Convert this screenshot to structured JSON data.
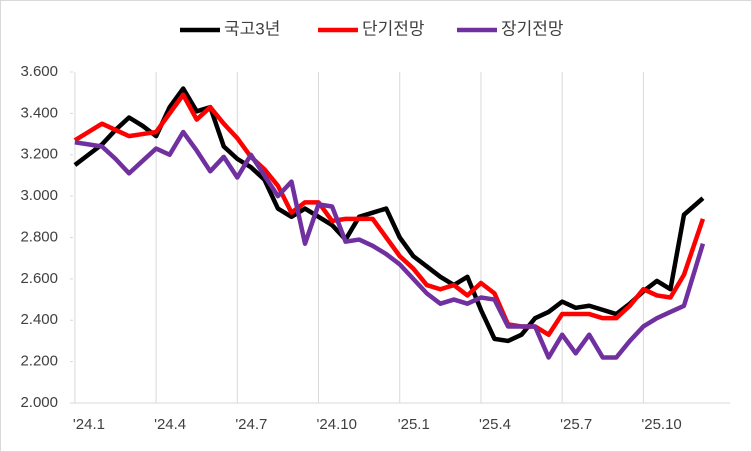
{
  "chart_data": {
    "type": "line",
    "x": [
      0,
      0.5,
      1,
      1.5,
      2,
      2.5,
      3,
      3.5,
      4,
      4.5,
      5,
      5.5,
      6,
      6.5,
      7,
      7.5,
      8,
      8.5,
      9,
      9.5,
      10,
      10.5,
      11,
      11.5,
      12,
      12.5,
      13,
      13.5,
      14,
      14.5,
      15,
      15.5,
      16,
      16.5,
      17,
      17.5,
      18,
      18.5,
      19,
      19.5,
      20,
      20.5,
      21,
      21.5,
      22,
      22.5,
      23.2
    ],
    "series": [
      {
        "name": "국고3년",
        "color": "#000000",
        "values": [
          3.15,
          3.2,
          3.25,
          3.32,
          3.38,
          3.34,
          3.29,
          3.43,
          3.52,
          3.41,
          3.43,
          3.24,
          3.18,
          3.14,
          3.08,
          2.94,
          2.9,
          2.94,
          2.9,
          2.86,
          2.79,
          2.9,
          2.92,
          2.94,
          2.8,
          2.71,
          2.66,
          2.61,
          2.57,
          2.61,
          2.45,
          2.31,
          2.3,
          2.33,
          2.41,
          2.44,
          2.49,
          2.46,
          2.47,
          2.45,
          2.43,
          2.48,
          2.54,
          2.59,
          2.55,
          2.91,
          2.99
        ]
      },
      {
        "name": "단기전망",
        "color": "#ff0000",
        "values": [
          3.27,
          3.31,
          3.35,
          3.32,
          3.29,
          3.3,
          3.31,
          3.4,
          3.49,
          3.37,
          3.43,
          3.35,
          3.28,
          3.19,
          3.13,
          3.05,
          2.92,
          2.97,
          2.97,
          2.88,
          2.89,
          2.89,
          2.89,
          2.8,
          2.71,
          2.65,
          2.57,
          2.55,
          2.57,
          2.52,
          2.58,
          2.53,
          2.38,
          2.37,
          2.37,
          2.33,
          2.43,
          2.43,
          2.43,
          2.41,
          2.41,
          2.47,
          2.55,
          2.52,
          2.51,
          2.62,
          2.89
        ]
      },
      {
        "name": "장기전망",
        "color": "#7030a0",
        "values": [
          3.26,
          3.25,
          3.24,
          3.18,
          3.11,
          3.17,
          3.23,
          3.2,
          3.31,
          3.22,
          3.12,
          3.19,
          3.09,
          3.2,
          3.1,
          3.0,
          3.07,
          2.77,
          2.96,
          2.95,
          2.78,
          2.79,
          2.76,
          2.72,
          2.67,
          2.6,
          2.53,
          2.48,
          2.5,
          2.48,
          2.51,
          2.5,
          2.37,
          2.37,
          2.37,
          2.22,
          2.33,
          2.24,
          2.33,
          2.22,
          2.22,
          2.3,
          2.37,
          2.41,
          2.44,
          2.47,
          2.77
        ]
      }
    ],
    "xlim": [
      -0.07,
      24.2
    ],
    "xticks": [
      {
        "value": 0,
        "label": "'24.1"
      },
      {
        "value": 3,
        "label": "'24.4"
      },
      {
        "value": 6,
        "label": "'24.7"
      },
      {
        "value": 9,
        "label": "'24.10"
      },
      {
        "value": 12,
        "label": "'25.1"
      },
      {
        "value": 15,
        "label": "'25.4"
      },
      {
        "value": 18,
        "label": "'25.7"
      },
      {
        "value": 21,
        "label": "'25.10"
      }
    ],
    "ylim": [
      2.0,
      3.6
    ],
    "yticks": [
      {
        "value": 2.0,
        "label": "2.000"
      },
      {
        "value": 2.2,
        "label": "2.200"
      },
      {
        "value": 2.4,
        "label": "2.400"
      },
      {
        "value": 2.6,
        "label": "2.600"
      },
      {
        "value": 2.8,
        "label": "2.800"
      },
      {
        "value": 3.0,
        "label": "3.000"
      },
      {
        "value": 3.2,
        "label": "3.200"
      },
      {
        "value": 3.4,
        "label": "3.400"
      },
      {
        "value": 3.6,
        "label": "3.600"
      }
    ],
    "grid": true,
    "legend": "top"
  }
}
